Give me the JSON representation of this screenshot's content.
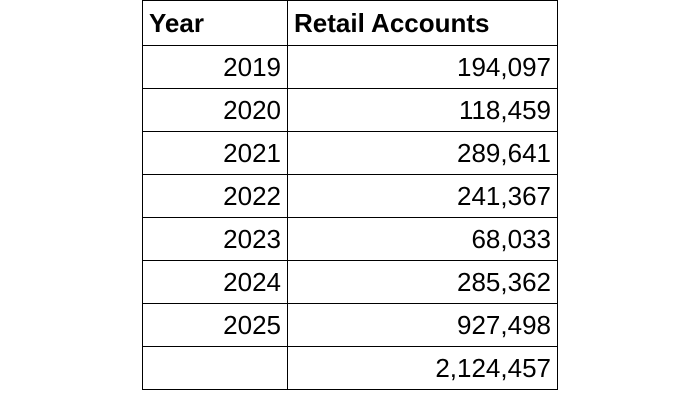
{
  "table": {
    "header": [
      "Year",
      "Retail Accounts"
    ],
    "rows": [
      [
        "2019",
        "194,097"
      ],
      [
        "2020",
        "118,459"
      ],
      [
        "2021",
        "289,641"
      ],
      [
        "2022",
        "241,367"
      ],
      [
        "2023",
        "68,033"
      ],
      [
        "2024",
        "285,362"
      ],
      [
        "2025",
        "927,498"
      ],
      [
        null,
        "2,124,457"
      ]
    ]
  }
}
